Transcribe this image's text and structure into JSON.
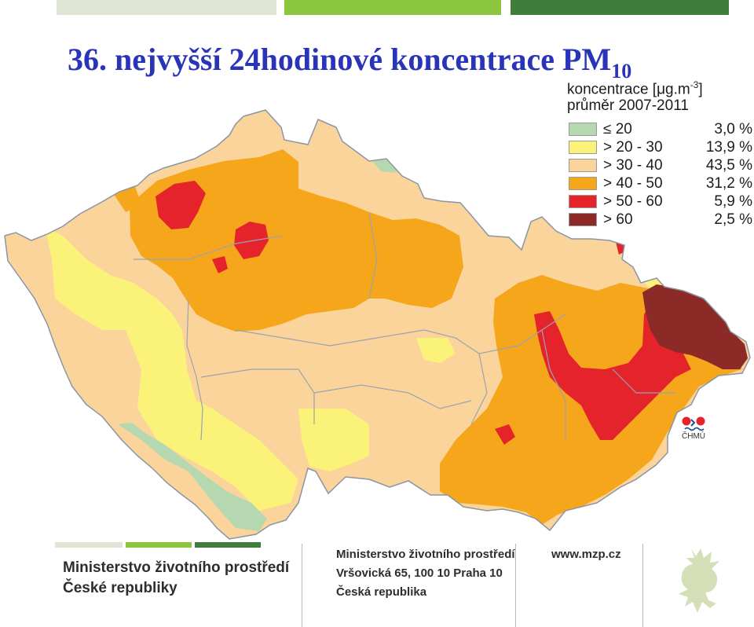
{
  "title": {
    "prefix": "36. nejvyšší 24hodinové koncentrace PM",
    "subscript": "10"
  },
  "legend": {
    "title_main": "koncentrace [μg.m",
    "title_exp": "-3",
    "title_close": "]",
    "subtitle": "průměr 2007-2011",
    "items": [
      {
        "label": "≤ 20",
        "percent": "3,0 %",
        "color": "#b5d8b0"
      },
      {
        "label": "> 20 - 30",
        "percent": "13,9 %",
        "color": "#fbf27a"
      },
      {
        "label": "> 30 - 40",
        "percent": "43,5 %",
        "color": "#fbd49b"
      },
      {
        "label": "> 40 - 50",
        "percent": "31,2 %",
        "color": "#f6a61a"
      },
      {
        "label": "> 50 - 60",
        "percent": "5,9 %",
        "color": "#e4232b"
      },
      {
        "label": "> 60",
        "percent": "2,5 %",
        "color": "#8b2a26"
      }
    ]
  },
  "source_logo": "ČHMÚ",
  "footer": {
    "ministry_line1": "Ministerstvo životního prostředí",
    "ministry_line2": "České republiky",
    "address_line1": "Ministerstvo životního prostředí",
    "address_line2": "Vršovická 65, 100 10  Praha 10",
    "address_line3": "Česká republika",
    "website": "www.mzp.cz"
  },
  "colors": {
    "title": "#2a34b8",
    "bar_light": "#dfe6d6",
    "bar_green": "#8cc63f",
    "bar_dark": "#3e7d3a",
    "region_border": "#9aa3b2"
  }
}
